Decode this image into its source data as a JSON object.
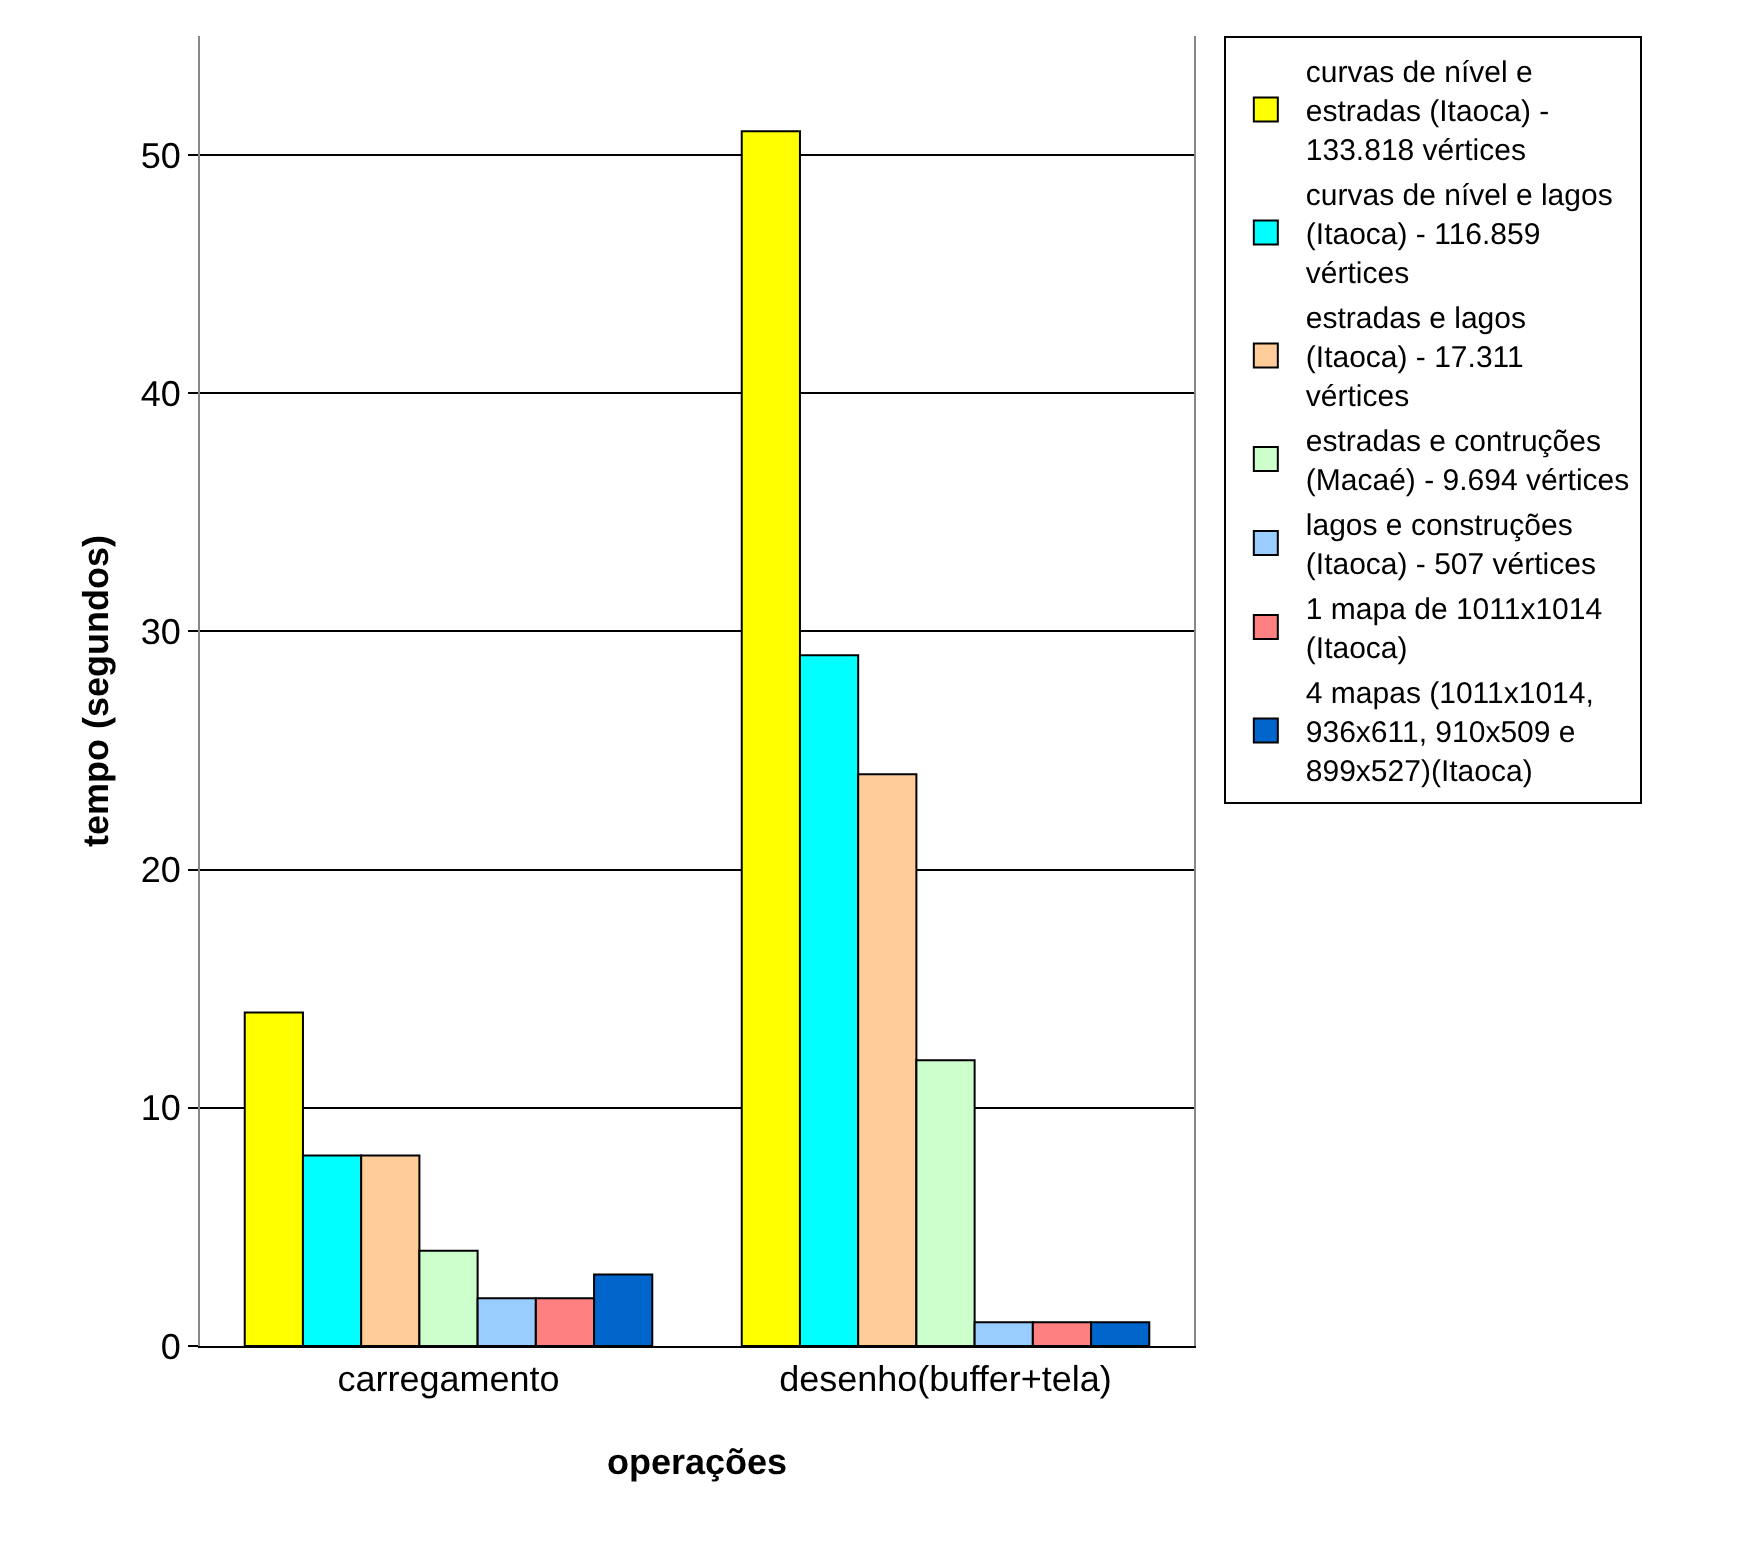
{
  "chart_data": {
    "type": "bar",
    "xlabel": "operações",
    "ylabel": "tempo (segundos)",
    "categories": [
      "carregamento",
      "desenho(buffer+tela)"
    ],
    "series": [
      {
        "name": "curvas de nível e estradas (Itaoca) - 133.818 vértices",
        "color": "#ffff00",
        "values": [
          14,
          51
        ]
      },
      {
        "name": "curvas de nível e lagos (Itaoca) - 116.859 vértices",
        "color": "#00ffff",
        "values": [
          8,
          29
        ]
      },
      {
        "name": "estradas e lagos (Itaoca) - 17.311 vértices",
        "color": "#ffcc99",
        "values": [
          8,
          24
        ]
      },
      {
        "name": "estradas e contruções (Macaé) - 9.694 vértices",
        "color": "#ccffcc",
        "values": [
          4,
          12
        ]
      },
      {
        "name": "lagos e construções (Itaoca) - 507 vértices",
        "color": "#99ccff",
        "values": [
          2,
          1
        ]
      },
      {
        "name": "1 mapa de 1011x1014 (Itaoca)",
        "color": "#ff8080",
        "values": [
          2,
          1
        ]
      },
      {
        "name": "4 mapas (1011x1014, 936x611, 910x509 e 899x527)(Itaoca)",
        "color": "#0066cc",
        "values": [
          3,
          1
        ]
      }
    ],
    "ylim": [
      0,
      55
    ],
    "yticks": [
      0,
      10,
      20,
      30,
      40,
      50
    ],
    "grid": "y",
    "legend": "right"
  }
}
